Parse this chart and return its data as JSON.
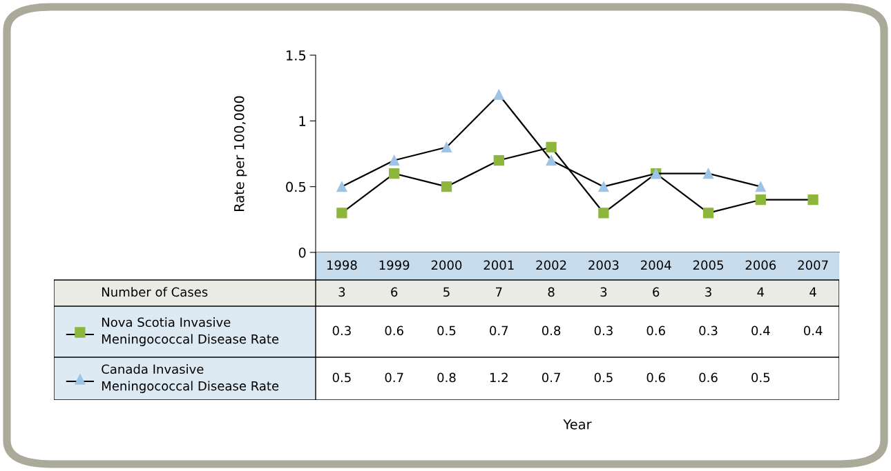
{
  "chart_data": {
    "type": "line",
    "ylabel": "Rate per 100,000",
    "categories": [
      "1998",
      "1999",
      "2000",
      "2001",
      "2002",
      "2003",
      "2004",
      "2005",
      "2006",
      "2007"
    ],
    "annotations": [
      "Number of Cases",
      "3",
      "6",
      "5",
      "7",
      "8",
      "3",
      "6",
      "3",
      "4",
      "4",
      "Year"
    ],
    "ylim": [
      0,
      1.5
    ],
    "yticks": [
      0,
      0.5,
      1,
      1.5
    ],
    "grid": false,
    "legend": "left",
    "data_labels": true,
    "series": [
      {
        "name": "Nova Scotia Invasive\nMeningococcal Disease Rate",
        "color": "#8cb63c",
        "marker": "square",
        "values": [
          0.3,
          0.6,
          0.5,
          0.7,
          0.8,
          0.3,
          0.6,
          0.3,
          0.4,
          0.4
        ]
      },
      {
        "name": "Canada Invasive\nMeningococcal Disease Rate",
        "color": "#9dc3e6",
        "marker": "triangle",
        "values": [
          0.5,
          0.7,
          0.8,
          1.2,
          0.7,
          0.5,
          0.6,
          0.6,
          0.5,
          null
        ]
      }
    ]
  }
}
